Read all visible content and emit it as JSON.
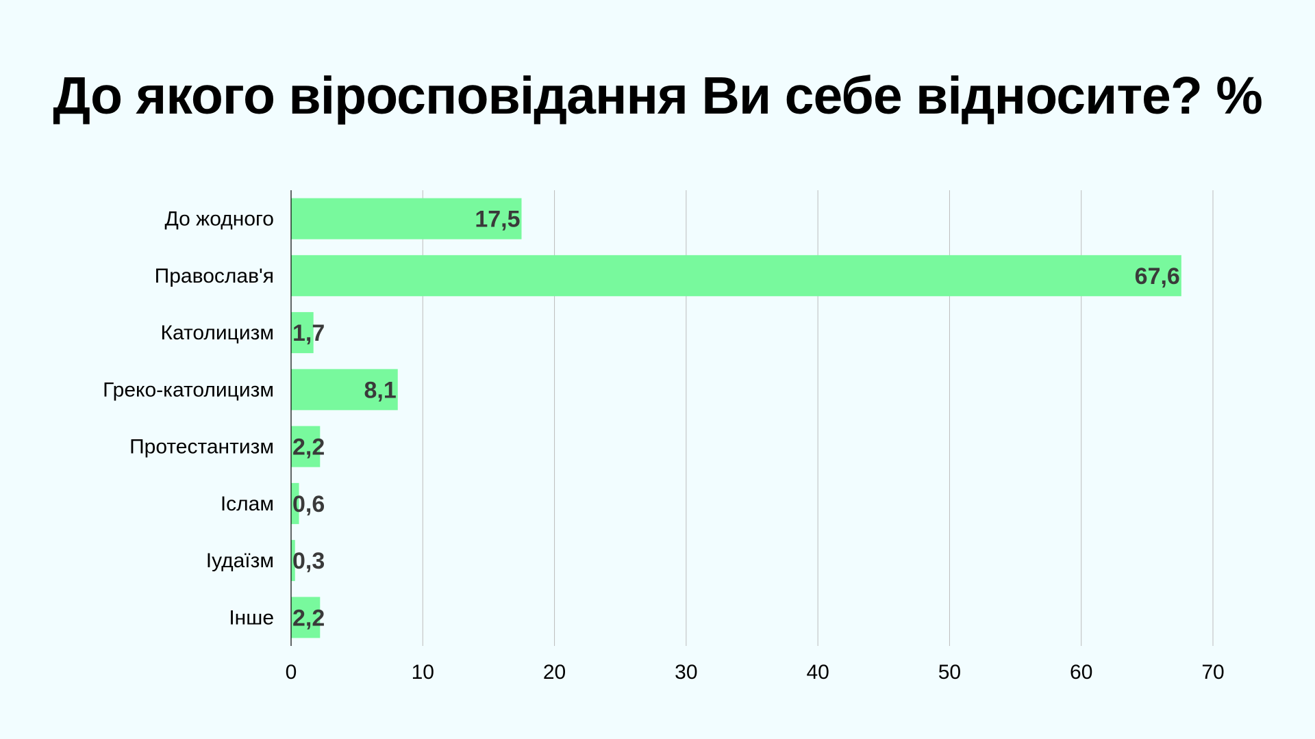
{
  "colors": {
    "background": "#f2fdff",
    "bar": "#78f99d",
    "data_label": "#3a3a3a",
    "grid": "#bcbcbc"
  },
  "chart_data": {
    "type": "bar",
    "orientation": "horizontal",
    "title": "До якого віросповідання Ви себе відносите? %",
    "categories": [
      "До жодного",
      "Православ'я",
      "Католицизм",
      "Греко-католицизм",
      "Протестантизм",
      "Іслам",
      "Іудаїзм",
      "Інше"
    ],
    "values": [
      17.5,
      67.6,
      1.7,
      8.1,
      2.2,
      0.6,
      0.3,
      2.2
    ],
    "value_labels": [
      "17,5",
      "67,6",
      "1,7",
      "8,1",
      "2,2",
      "0,6",
      "0,3",
      "2,2"
    ],
    "xlim": [
      0,
      70
    ],
    "xticks": [
      0,
      10,
      20,
      30,
      40,
      50,
      60,
      70
    ],
    "xlabel": "",
    "ylabel": "",
    "grid": "vertical",
    "legend": "none"
  }
}
